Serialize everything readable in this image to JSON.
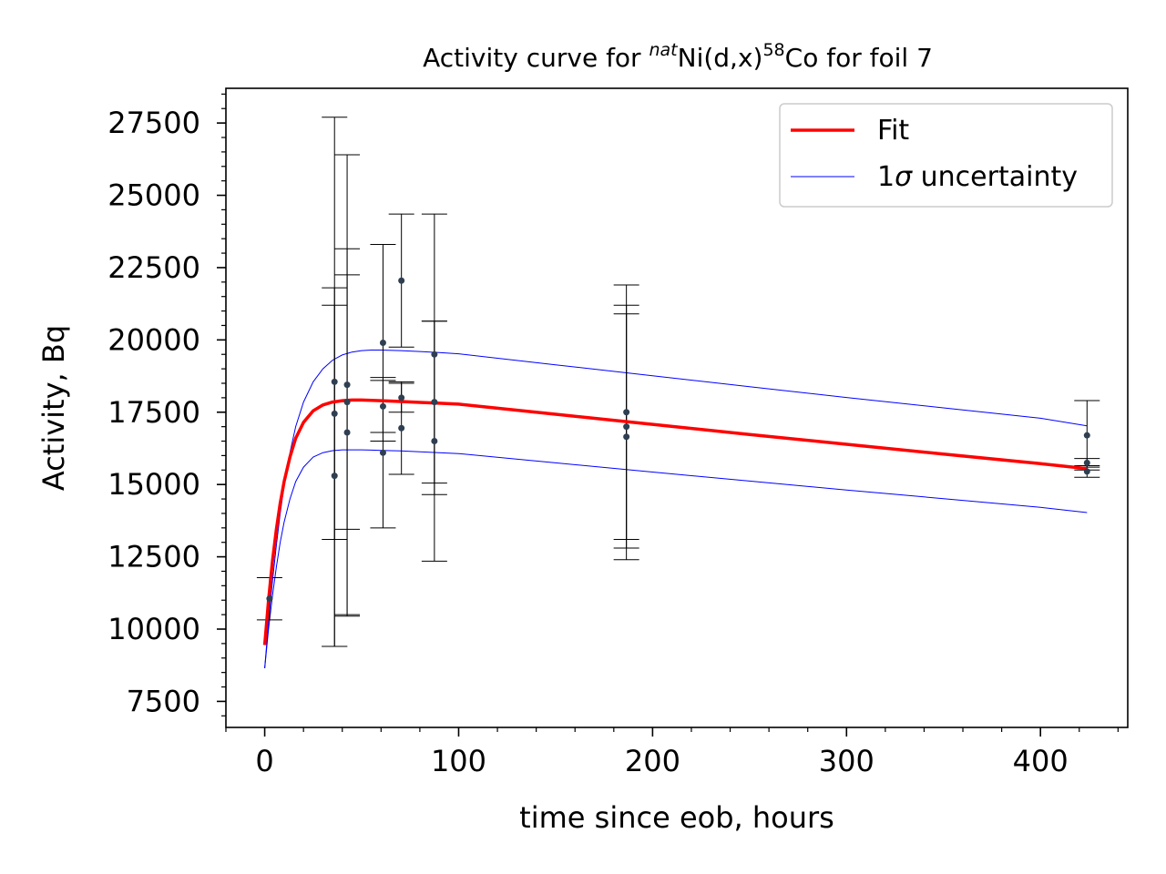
{
  "chart_data": {
    "type": "scatter",
    "title": {
      "prefix": "Activity curve for ",
      "sup1": "nat",
      "mid": "Ni(d,x)",
      "sup2": "58",
      "suffix": "Co for foil 7"
    },
    "xlabel": "time since eob, hours",
    "ylabel": "Activity, Bq",
    "xlim": [
      -20,
      445
    ],
    "ylim": [
      6600,
      28700
    ],
    "xticks": [
      0,
      100,
      200,
      300,
      400
    ],
    "yticks": [
      7500,
      10000,
      12500,
      15000,
      17500,
      20000,
      22500,
      25000,
      27500
    ],
    "xticklabels": [
      "0",
      "100",
      "200",
      "300",
      "400"
    ],
    "yticklabels": [
      "7500",
      "10000",
      "12500",
      "15000",
      "17500",
      "20000",
      "22500",
      "25000",
      "27500"
    ],
    "legend": {
      "placement": "upper right",
      "entries": [
        {
          "label": "Fit",
          "color": "#ff0000"
        },
        {
          "label_main": "1",
          "label_sigma": "σ",
          "label_rest": " uncertainty",
          "color": "#0000ff"
        }
      ]
    },
    "colors": {
      "fit": "#ff0000",
      "uncertainty": "#0000ff",
      "points": "#2f3f52",
      "errorbars": "#000000"
    },
    "points": [
      {
        "x": 2.5,
        "y": 11050,
        "err": 730
      },
      {
        "x": 36,
        "y": 18550,
        "err": 9150
      },
      {
        "x": 36,
        "y": 17450,
        "err": 4350
      },
      {
        "x": 36,
        "y": 15300,
        "err": 5900
      },
      {
        "x": 42.5,
        "y": 18450,
        "err": 7950
      },
      {
        "x": 42.5,
        "y": 17850,
        "err": 4400
      },
      {
        "x": 42.5,
        "y": 16800,
        "err": 6350
      },
      {
        "x": 61,
        "y": 19900,
        "err": 3400
      },
      {
        "x": 61,
        "y": 17700,
        "err": 900
      },
      {
        "x": 61,
        "y": 16100,
        "err": 2600
      },
      {
        "x": 70.5,
        "y": 22050,
        "err": 2300
      },
      {
        "x": 70.5,
        "y": 18000,
        "err": 500
      },
      {
        "x": 70.5,
        "y": 16950,
        "err": 1600
      },
      {
        "x": 87.5,
        "y": 19500,
        "err": 4850
      },
      {
        "x": 87.5,
        "y": 17850,
        "err": 2800
      },
      {
        "x": 87.5,
        "y": 16500,
        "err": 4150
      },
      {
        "x": 186.5,
        "y": 17500,
        "err": 4400
      },
      {
        "x": 186.5,
        "y": 17000,
        "err": 4200
      },
      {
        "x": 186.5,
        "y": 16650,
        "err": 4250
      },
      {
        "x": 424,
        "y": 16700,
        "err": 1200
      },
      {
        "x": 424,
        "y": 15750,
        "err": 150
      },
      {
        "x": 424,
        "y": 15450,
        "err": 200
      }
    ],
    "fit": {
      "x": [
        0,
        2,
        4,
        6,
        8,
        10,
        13,
        16,
        20,
        25,
        30,
        35,
        40,
        45,
        50,
        55,
        60,
        70,
        80,
        90,
        100,
        150,
        200,
        250,
        300,
        350,
        400,
        424
      ],
      "y": [
        9450,
        11000,
        12350,
        13450,
        14350,
        15100,
        15950,
        16600,
        17150,
        17550,
        17750,
        17850,
        17900,
        17920,
        17920,
        17910,
        17900,
        17870,
        17840,
        17810,
        17780,
        17430,
        17080,
        16730,
        16390,
        16050,
        15720,
        15550
      ],
      "upper": [
        8650,
        10250,
        11650,
        12900,
        14000,
        14950,
        16100,
        17000,
        17850,
        18550,
        19000,
        19300,
        19480,
        19580,
        19630,
        19650,
        19650,
        19630,
        19600,
        19560,
        19520,
        19140,
        18760,
        18380,
        18010,
        17650,
        17290,
        17030
      ],
      "lower": [
        8650,
        10000,
        11150,
        12150,
        13000,
        13700,
        14500,
        15100,
        15600,
        15950,
        16100,
        16170,
        16200,
        16200,
        16200,
        16190,
        16180,
        16160,
        16130,
        16100,
        16070,
        15750,
        15430,
        15120,
        14810,
        14510,
        14210,
        14030
      ]
    }
  }
}
